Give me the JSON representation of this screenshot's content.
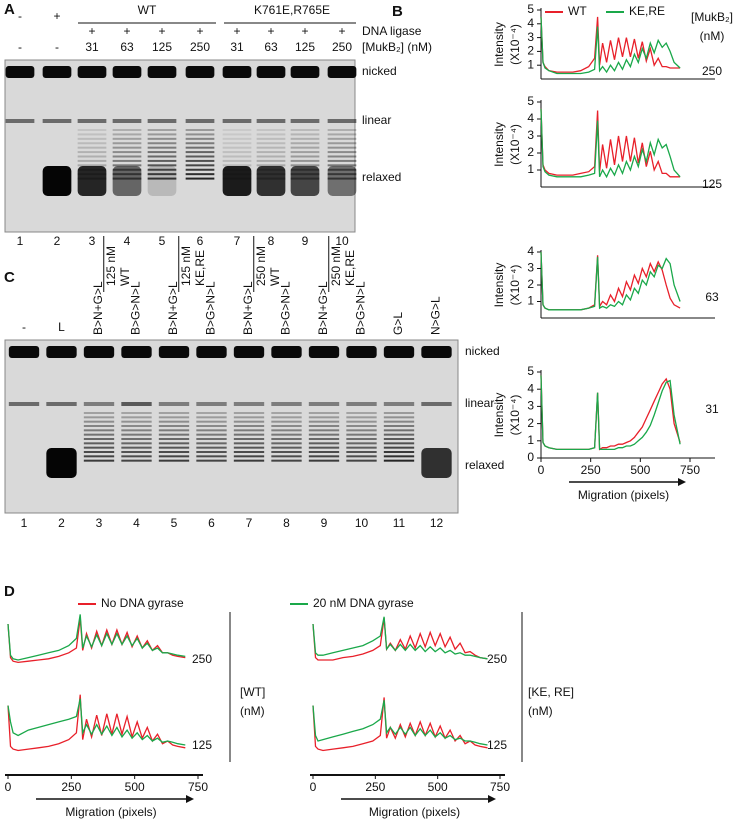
{
  "panel_a": {
    "letter": "A",
    "wt": "WT",
    "mutant": "K761E,R765E",
    "ligase_label": "DNA ligase",
    "mukb_label": "[MukB₂] (nM)",
    "ligase": [
      "-",
      "+",
      "+",
      "+",
      "+",
      "+",
      "+",
      "+",
      "+",
      "+"
    ],
    "mukb": [
      "-",
      "-",
      "31",
      "63",
      "125",
      "250",
      "31",
      "63",
      "125",
      "250"
    ],
    "bands": [
      "nicked",
      "linear",
      "relaxed"
    ],
    "lanes": [
      1,
      2,
      3,
      4,
      5,
      6,
      7,
      8,
      9,
      10
    ]
  },
  "panel_b": {
    "letter": "B",
    "header": [
      "[MukB₂]",
      "(nM)"
    ]
  },
  "panel_c": {
    "letter": "C",
    "lane_headers": [
      "-",
      "L",
      "B>N+G>L",
      "B>G>N>L",
      "B>N+G>L",
      "B>G>N>L",
      "B>N+G>L",
      "B>G>N>L",
      "B>N+G>L",
      "B>G>N>L",
      "G>L",
      "N>G>L"
    ],
    "groups": [
      {
        "concentration": "125 nM",
        "protein": "WT"
      },
      {
        "concentration": "125 nM",
        "protein": "KE,RE"
      },
      {
        "concentration": "250 nM",
        "protein": "WT"
      },
      {
        "concentration": "250 nM",
        "protein": "KE,RE"
      }
    ],
    "bands": [
      "nicked",
      "linear",
      "relaxed"
    ],
    "lanes": [
      1,
      2,
      3,
      4,
      5,
      6,
      7,
      8,
      9,
      10,
      11,
      12
    ]
  },
  "panel_d": {
    "letter": "D",
    "wt_label": "[WT]",
    "wt_unit": "(nM)",
    "ke_label": "[KE, RE]",
    "ke_unit": "(nM)"
  },
  "chart_data": [
    {
      "type": "line",
      "label": 250,
      "y_label": [
        "Intensity",
        "(X10⁻⁴)"
      ],
      "x": [
        0,
        10,
        20,
        40,
        80,
        120,
        160,
        200,
        240,
        270,
        285,
        295,
        310,
        330,
        350,
        370,
        390,
        410,
        430,
        450,
        470,
        490,
        510,
        530,
        550,
        570,
        590,
        610,
        630,
        650,
        670,
        700
      ],
      "xlim": [
        0,
        750
      ],
      "ylim": [
        0,
        5
      ],
      "yticks": [
        1,
        2,
        3,
        4,
        5
      ],
      "series": [
        {
          "name": "WT",
          "color": "#e8202a",
          "values": [
            4.5,
            1.2,
            0.9,
            0.6,
            0.5,
            0.5,
            0.5,
            0.6,
            0.9,
            1.5,
            4.5,
            1.0,
            2.6,
            1.2,
            2.8,
            1.4,
            3.0,
            1.6,
            3.0,
            1.6,
            2.9,
            1.5,
            2.7,
            1.3,
            2.2,
            1.0,
            1.5,
            0.9,
            0.9,
            0.8,
            0.8,
            0.8
          ]
        },
        {
          "name": "KE,RE",
          "color": "#1aa84a",
          "values": [
            4.5,
            1.2,
            0.8,
            0.6,
            0.4,
            0.4,
            0.4,
            0.4,
            0.5,
            0.7,
            3.8,
            0.6,
            0.9,
            0.5,
            1.0,
            0.6,
            1.2,
            0.7,
            1.4,
            0.9,
            1.8,
            1.2,
            2.2,
            1.5,
            2.6,
            1.9,
            2.8,
            2.3,
            2.6,
            2.0,
            1.2,
            0.8
          ]
        }
      ]
    },
    {
      "type": "line",
      "label": 125,
      "y_label": [
        "Intensity",
        "(X10⁻⁴)"
      ],
      "x": [
        0,
        10,
        20,
        40,
        80,
        120,
        160,
        200,
        240,
        270,
        285,
        295,
        310,
        330,
        350,
        370,
        390,
        410,
        430,
        450,
        470,
        490,
        510,
        530,
        550,
        570,
        590,
        610,
        630,
        650,
        670,
        700
      ],
      "xlim": [
        0,
        750
      ],
      "ylim": [
        0,
        5
      ],
      "yticks": [
        1,
        2,
        3,
        4,
        5
      ],
      "series": [
        {
          "color": "#e8202a",
          "values": [
            4.6,
            1.3,
            1.0,
            0.8,
            0.7,
            0.7,
            0.7,
            0.8,
            0.9,
            1.2,
            4.5,
            0.9,
            2.5,
            1.1,
            2.8,
            1.3,
            3.0,
            1.5,
            3.0,
            1.5,
            2.9,
            1.4,
            2.6,
            1.2,
            2.1,
            1.0,
            1.5,
            0.8,
            0.8,
            0.6,
            0.6,
            0.6
          ]
        },
        {
          "color": "#1aa84a",
          "values": [
            4.6,
            1.2,
            0.9,
            0.7,
            0.6,
            0.6,
            0.6,
            0.6,
            0.7,
            0.8,
            3.9,
            0.6,
            1.0,
            0.6,
            1.1,
            0.7,
            1.3,
            0.8,
            1.5,
            1.0,
            1.8,
            1.2,
            2.2,
            1.5,
            2.6,
            1.9,
            2.8,
            2.3,
            2.5,
            1.8,
            1.0,
            0.6
          ]
        }
      ]
    },
    {
      "type": "line",
      "label": 63,
      "y_label": [
        "Intensity",
        "(X10⁻⁴)"
      ],
      "x": [
        0,
        10,
        20,
        40,
        80,
        120,
        160,
        200,
        240,
        270,
        285,
        295,
        310,
        330,
        350,
        370,
        390,
        410,
        430,
        450,
        470,
        490,
        510,
        530,
        550,
        570,
        590,
        610,
        630,
        650,
        670,
        700
      ],
      "xlim": [
        0,
        750
      ],
      "ylim": [
        0,
        4
      ],
      "yticks": [
        1,
        2,
        3,
        4
      ],
      "series": [
        {
          "color": "#e8202a",
          "values": [
            4,
            0.8,
            0.6,
            0.5,
            0.5,
            0.5,
            0.5,
            0.5,
            0.6,
            0.8,
            3.8,
            0.7,
            1.0,
            0.8,
            1.4,
            1.0,
            1.8,
            1.3,
            2.2,
            1.7,
            2.6,
            2.1,
            3.0,
            2.5,
            3.3,
            2.8,
            3.4,
            2.9,
            2.0,
            1.2,
            0.8,
            0.6
          ]
        },
        {
          "color": "#1aa84a",
          "values": [
            4,
            0.8,
            0.6,
            0.5,
            0.5,
            0.5,
            0.5,
            0.5,
            0.6,
            0.7,
            3.7,
            0.6,
            0.7,
            0.6,
            0.8,
            0.7,
            1.0,
            0.8,
            1.4,
            1.1,
            1.8,
            1.5,
            2.3,
            2.0,
            2.8,
            2.5,
            3.2,
            3.0,
            3.6,
            3.3,
            2.0,
            1.0
          ]
        }
      ]
    },
    {
      "type": "line",
      "label": 31,
      "y_label": [
        "Intensity",
        "(X10⁻⁴)"
      ],
      "x_label": "Migration (pixels)",
      "x": [
        0,
        10,
        20,
        40,
        80,
        120,
        160,
        200,
        240,
        270,
        285,
        295,
        310,
        330,
        350,
        370,
        390,
        410,
        430,
        450,
        470,
        490,
        510,
        530,
        550,
        570,
        590,
        610,
        630,
        650,
        670,
        700
      ],
      "xlim": [
        0,
        750
      ],
      "xticks": [
        0,
        250,
        500,
        750
      ],
      "ylim": [
        0,
        5
      ],
      "yticks": [
        0,
        1,
        2,
        3,
        4,
        5
      ],
      "series": [
        {
          "color": "#e8202a",
          "values": [
            4.8,
            0.9,
            0.7,
            0.6,
            0.5,
            0.5,
            0.5,
            0.5,
            0.5,
            0.6,
            3.8,
            0.5,
            0.6,
            0.6,
            0.7,
            0.7,
            0.8,
            0.8,
            0.9,
            1.0,
            1.2,
            1.5,
            1.8,
            2.3,
            2.8,
            3.3,
            3.8,
            4.3,
            4.6,
            4.0,
            2.0,
            0.9
          ]
        },
        {
          "color": "#1aa84a",
          "values": [
            4.8,
            0.9,
            0.7,
            0.6,
            0.5,
            0.5,
            0.5,
            0.5,
            0.5,
            0.6,
            3.8,
            0.5,
            0.5,
            0.5,
            0.5,
            0.5,
            0.6,
            0.6,
            0.7,
            0.7,
            0.8,
            1.0,
            1.2,
            1.5,
            1.9,
            2.5,
            3.2,
            3.9,
            4.4,
            4.5,
            2.5,
            0.8
          ]
        }
      ]
    },
    {
      "type": "line",
      "label": 250,
      "x": [
        0,
        10,
        20,
        40,
        80,
        120,
        160,
        200,
        240,
        270,
        285,
        295,
        310,
        330,
        350,
        370,
        390,
        410,
        430,
        450,
        470,
        490,
        510,
        530,
        550,
        570,
        590,
        610,
        630,
        650,
        670,
        700
      ],
      "xlim": [
        0,
        750
      ],
      "ylim": [
        0,
        5
      ],
      "series": [
        {
          "name": "No DNA gyrase",
          "color": "#e8202a",
          "values": [
            4,
            1.2,
            0.9,
            0.8,
            0.9,
            1.0,
            1.1,
            1.3,
            1.6,
            2.0,
            4.5,
            1.8,
            3.2,
            2.0,
            3.4,
            2.2,
            3.5,
            2.3,
            3.5,
            2.3,
            3.3,
            2.1,
            3.0,
            2.0,
            2.6,
            1.8,
            2.2,
            1.6,
            1.6,
            1.4,
            1.3,
            1.2
          ]
        },
        {
          "name": "20 nM DNA gyrase",
          "color": "#1aa84a",
          "values": [
            4,
            1.4,
            1.1,
            1.0,
            1.2,
            1.4,
            1.6,
            1.8,
            2.2,
            2.8,
            4.8,
            2.0,
            3.0,
            2.1,
            3.1,
            2.2,
            3.2,
            2.3,
            3.2,
            2.3,
            3.0,
            2.2,
            2.8,
            2.0,
            2.4,
            1.8,
            2.0,
            1.6,
            1.6,
            1.5,
            1.4,
            1.3
          ]
        }
      ]
    },
    {
      "type": "line",
      "label": 125,
      "x_label": "Migration (pixels)",
      "x": [
        0,
        10,
        20,
        40,
        80,
        120,
        160,
        200,
        240,
        270,
        285,
        295,
        310,
        330,
        350,
        370,
        390,
        410,
        430,
        450,
        470,
        490,
        510,
        530,
        550,
        570,
        590,
        610,
        630,
        650,
        670,
        700
      ],
      "xlim": [
        0,
        750
      ],
      "xticks": [
        0,
        250,
        500,
        750
      ],
      "ylim": [
        0,
        5
      ],
      "series": [
        {
          "color": "#e8202a",
          "values": [
            4,
            1.0,
            0.8,
            0.7,
            0.8,
            0.9,
            1.0,
            1.2,
            1.5,
            2.0,
            4.8,
            1.5,
            3.0,
            1.7,
            3.3,
            1.8,
            3.4,
            1.9,
            3.4,
            1.9,
            3.2,
            1.7,
            2.8,
            1.6,
            2.4,
            1.4,
            1.9,
            1.2,
            1.4,
            1.1,
            1.0,
            0.9
          ]
        },
        {
          "color": "#1aa84a",
          "values": [
            4,
            2.8,
            2.0,
            1.8,
            2.2,
            2.4,
            2.6,
            2.8,
            3.0,
            3.2,
            4.5,
            2.0,
            2.6,
            1.9,
            2.6,
            1.9,
            2.5,
            1.8,
            2.4,
            1.7,
            2.2,
            1.6,
            2.0,
            1.5,
            1.8,
            1.4,
            1.6,
            1.3,
            1.4,
            1.3,
            1.2,
            1.1
          ]
        }
      ]
    },
    {
      "type": "line",
      "label": 250,
      "x": [
        0,
        10,
        20,
        40,
        80,
        120,
        160,
        200,
        240,
        270,
        285,
        295,
        310,
        330,
        350,
        370,
        390,
        410,
        430,
        450,
        470,
        490,
        510,
        530,
        550,
        570,
        590,
        610,
        630,
        650,
        670,
        700
      ],
      "xlim": [
        0,
        750
      ],
      "ylim": [
        0,
        5
      ],
      "series": [
        {
          "color": "#e8202a",
          "values": [
            4,
            1.2,
            1.0,
            1.0,
            1.0,
            1.2,
            1.3,
            1.5,
            1.8,
            2.2,
            4.5,
            1.9,
            2.4,
            1.8,
            2.7,
            1.9,
            3.0,
            2.0,
            3.2,
            2.1,
            3.3,
            2.2,
            3.2,
            2.1,
            2.9,
            1.9,
            2.4,
            1.6,
            1.7,
            1.4,
            1.2,
            1.1
          ]
        },
        {
          "color": "#1aa84a",
          "values": [
            4,
            1.6,
            1.4,
            1.4,
            1.6,
            1.8,
            2.0,
            2.2,
            2.6,
            3.0,
            4.6,
            1.9,
            2.3,
            1.8,
            2.3,
            1.8,
            2.3,
            1.8,
            2.2,
            1.7,
            2.1,
            1.7,
            2.0,
            1.6,
            1.8,
            1.5,
            1.6,
            1.4,
            1.4,
            1.3,
            1.2,
            1.1
          ]
        }
      ]
    },
    {
      "type": "line",
      "label": 125,
      "x_label": "Migration (pixels)",
      "x": [
        0,
        10,
        20,
        40,
        80,
        120,
        160,
        200,
        240,
        270,
        285,
        295,
        310,
        330,
        350,
        370,
        390,
        410,
        430,
        450,
        470,
        490,
        510,
        530,
        550,
        570,
        590,
        610,
        630,
        650,
        670,
        700
      ],
      "xlim": [
        0,
        750
      ],
      "xticks": [
        0,
        250,
        500,
        750
      ],
      "ylim": [
        0,
        5
      ],
      "series": [
        {
          "color": "#e8202a",
          "values": [
            4,
            1.0,
            0.8,
            0.7,
            0.8,
            0.9,
            1.0,
            1.2,
            1.4,
            1.8,
            4.6,
            1.6,
            2.4,
            1.6,
            2.6,
            1.7,
            2.7,
            1.8,
            2.8,
            1.8,
            2.7,
            1.7,
            2.5,
            1.6,
            2.2,
            1.4,
            1.8,
            1.2,
            1.4,
            1.1,
            1.0,
            0.9
          ]
        },
        {
          "color": "#1aa84a",
          "values": [
            4,
            1.8,
            1.4,
            1.5,
            1.7,
            1.9,
            2.1,
            2.3,
            2.6,
            3.0,
            4.4,
            2.0,
            2.4,
            1.9,
            2.4,
            1.9,
            2.4,
            1.8,
            2.3,
            1.8,
            2.2,
            1.7,
            2.0,
            1.6,
            1.8,
            1.5,
            1.6,
            1.4,
            1.4,
            1.3,
            1.2,
            1.1
          ]
        }
      ]
    }
  ]
}
